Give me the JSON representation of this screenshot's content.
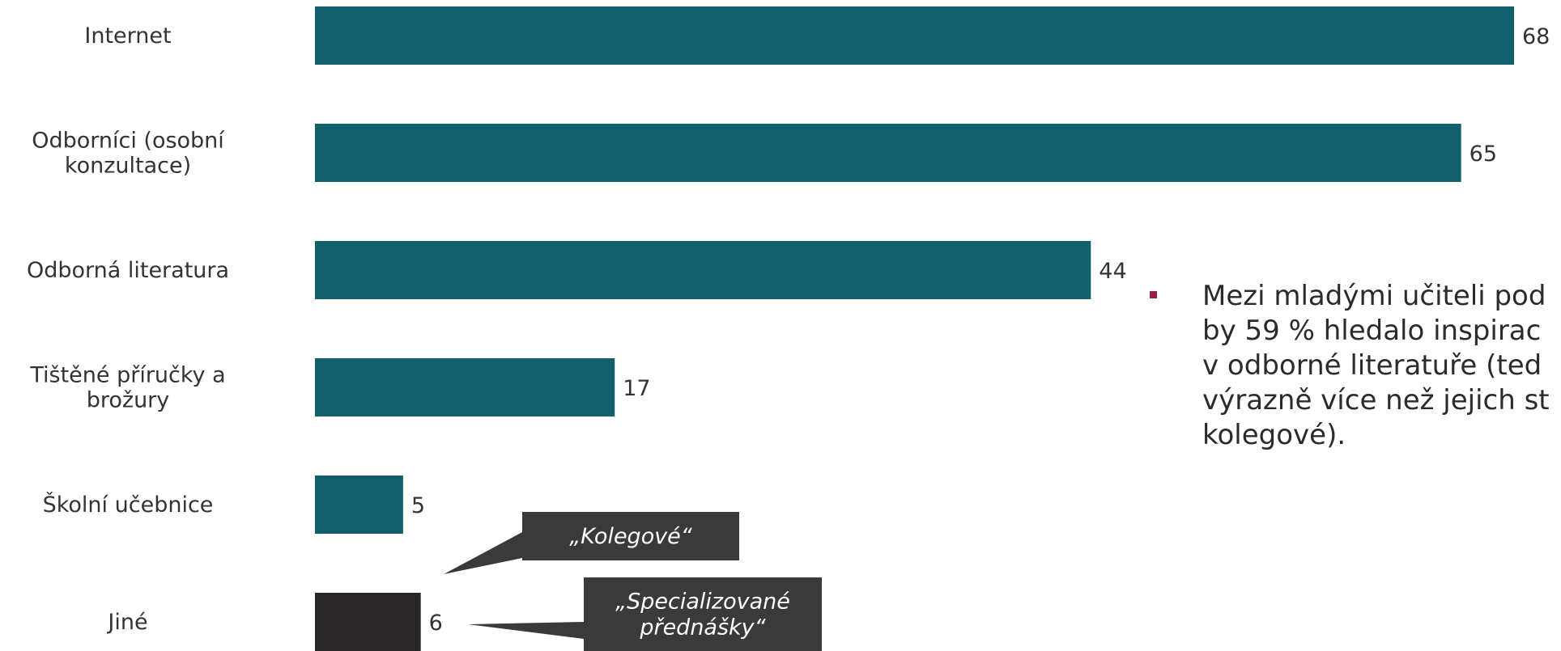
{
  "chart_data": {
    "type": "bar",
    "orientation": "horizontal",
    "categories": [
      "Internet",
      "Odborníci (osobní\nkonzultace)",
      "Odborná literatura",
      "Tištěné příručky a\nbrožury",
      "Školní učebnice",
      "Jiné"
    ],
    "values": [
      68,
      65,
      44,
      17,
      5,
      6
    ],
    "bar_colors": [
      "#11606b",
      "#11606b",
      "#11606b",
      "#11606b",
      "#11606b",
      "#2a2627"
    ],
    "xlim": [
      0,
      68
    ],
    "grid": false,
    "callouts": [
      {
        "text": "„Kolegové“",
        "category_index": 5
      },
      {
        "text": "„Specializované\npřednášky“",
        "category_index": 5
      }
    ]
  },
  "side_note": {
    "text": "Mezi mladými učiteli pod\nby 59 % hledalo inspirac\nv odborné literatuře (ted\nvýrazně více než jejich st\nkolegové).",
    "bullet_color": "#9b1b4d"
  }
}
